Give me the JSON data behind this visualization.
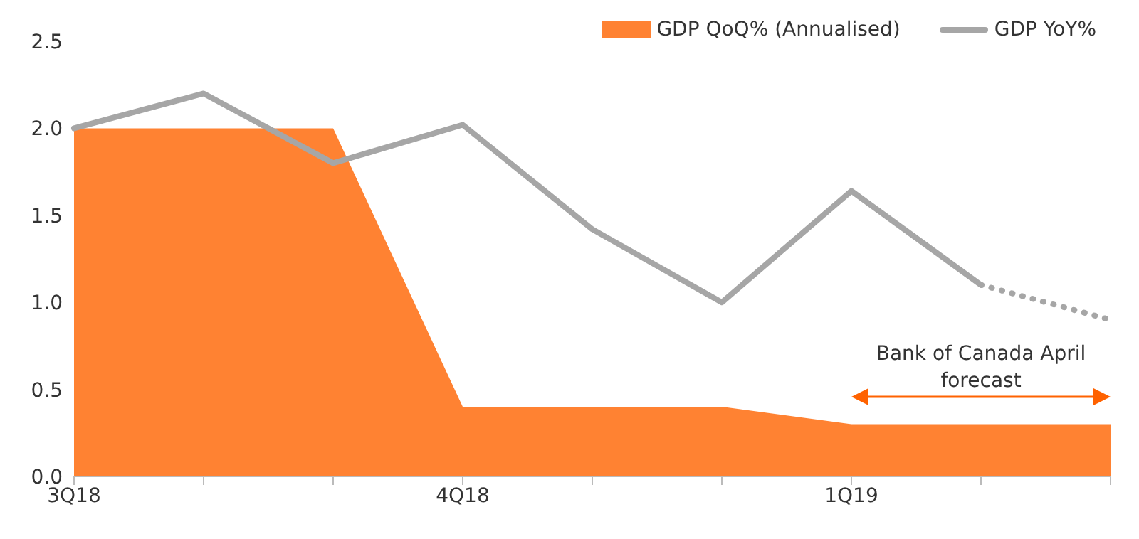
{
  "chart_data": {
    "type": "line",
    "categories": [
      "3Q18",
      null,
      null,
      "4Q18",
      null,
      null,
      "1Q19",
      null,
      null
    ],
    "series": [
      {
        "name": "GDP QoQ% (Annualised)",
        "type": "area",
        "color": "#ff8232",
        "values": [
          2.0,
          2.0,
          2.0,
          0.4,
          0.4,
          0.4,
          0.3,
          0.3,
          0.3
        ]
      },
      {
        "name": "GDP YoY%",
        "color": "#a6a6a6",
        "line_style": "solid",
        "values": [
          2.0,
          2.2,
          1.8,
          2.02,
          1.42,
          1.0,
          1.64,
          1.1,
          null
        ]
      },
      {
        "color": "#a6a6a6",
        "line_style": "dotted",
        "values": [
          null,
          null,
          null,
          null,
          null,
          null,
          null,
          1.1,
          0.9
        ]
      }
    ],
    "ylim": [
      0,
      2.5
    ],
    "yticks": [
      {
        "value": 0,
        "label": "0.0"
      },
      {
        "value": 0.5,
        "label": "0.5"
      },
      {
        "value": 1,
        "label": "1.0"
      },
      {
        "value": 1.5,
        "label": "1.5"
      },
      {
        "value": 2,
        "label": "2.0"
      },
      {
        "value": 2.5,
        "label": "2.5"
      }
    ],
    "grid": false,
    "legend": "top right",
    "marker": "none",
    "annotations": [
      "Bank of Canada April forecast"
    ]
  }
}
